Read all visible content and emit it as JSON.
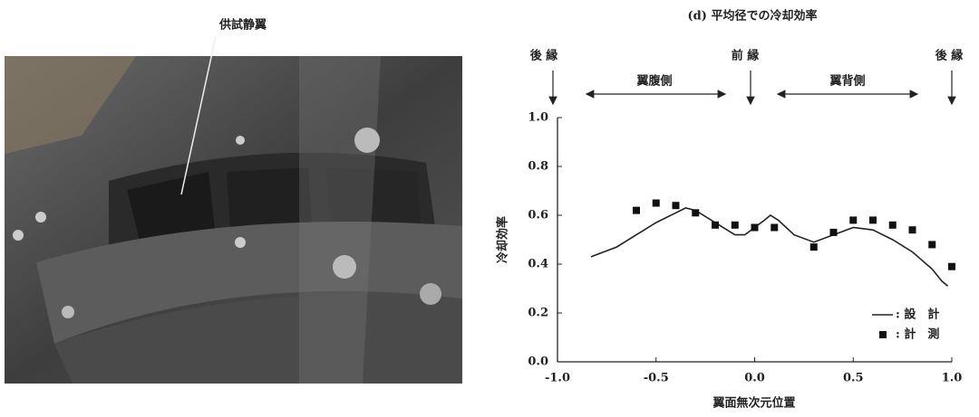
{
  "photo_label": "供試静翼",
  "chart_data": {
    "type": "line",
    "title": "(d)  平均径での冷却効率",
    "xlabel": "翼面無次元位置",
    "ylabel": "冷却効率",
    "annotations": [
      "後 縁",
      "前 縁",
      "後 縁",
      "翼腹側",
      "翼背側"
    ],
    "xlim": [
      -1.0,
      1.0
    ],
    "ylim": [
      0.0,
      1.0
    ],
    "xticks": [
      {
        "value": -1.0,
        "label": "-1.0"
      },
      {
        "value": -0.5,
        "label": "-0.5"
      },
      {
        "value": 0.0,
        "label": "0.0"
      },
      {
        "value": 0.5,
        "label": "0.5"
      },
      {
        "value": 1.0,
        "label": "1.0"
      }
    ],
    "yticks": [
      {
        "value": 0.0,
        "label": "0.0"
      },
      {
        "value": 0.2,
        "label": "0.2"
      },
      {
        "value": 0.4,
        "label": "0.4"
      },
      {
        "value": 0.6,
        "label": "0.6"
      },
      {
        "value": 0.8,
        "label": "0.8"
      },
      {
        "value": 1.0,
        "label": "1.0"
      }
    ],
    "series": [
      {
        "name": ": 設　計",
        "mark": "line",
        "color": "#222222",
        "x": [
          -0.83,
          -0.7,
          -0.6,
          -0.5,
          -0.4,
          -0.35,
          -0.3,
          -0.2,
          -0.1,
          -0.05,
          0.0,
          0.05,
          0.08,
          0.12,
          0.2,
          0.3,
          0.4,
          0.5,
          0.6,
          0.7,
          0.8,
          0.9,
          0.95,
          0.98
        ],
        "values": [
          0.43,
          0.47,
          0.52,
          0.57,
          0.61,
          0.63,
          0.62,
          0.57,
          0.52,
          0.52,
          0.55,
          0.58,
          0.6,
          0.58,
          0.52,
          0.49,
          0.52,
          0.55,
          0.54,
          0.5,
          0.45,
          0.38,
          0.33,
          0.31
        ]
      },
      {
        "name": ": 計　測",
        "mark": "square",
        "color": "#111111",
        "x": [
          -0.6,
          -0.5,
          -0.4,
          -0.3,
          -0.2,
          -0.1,
          0.0,
          0.1,
          0.3,
          0.4,
          0.5,
          0.6,
          0.7,
          0.8,
          0.9,
          1.0
        ],
        "values": [
          0.62,
          0.65,
          0.64,
          0.61,
          0.56,
          0.56,
          0.55,
          0.55,
          0.47,
          0.53,
          0.58,
          0.58,
          0.56,
          0.54,
          0.48,
          0.39
        ]
      }
    ]
  }
}
